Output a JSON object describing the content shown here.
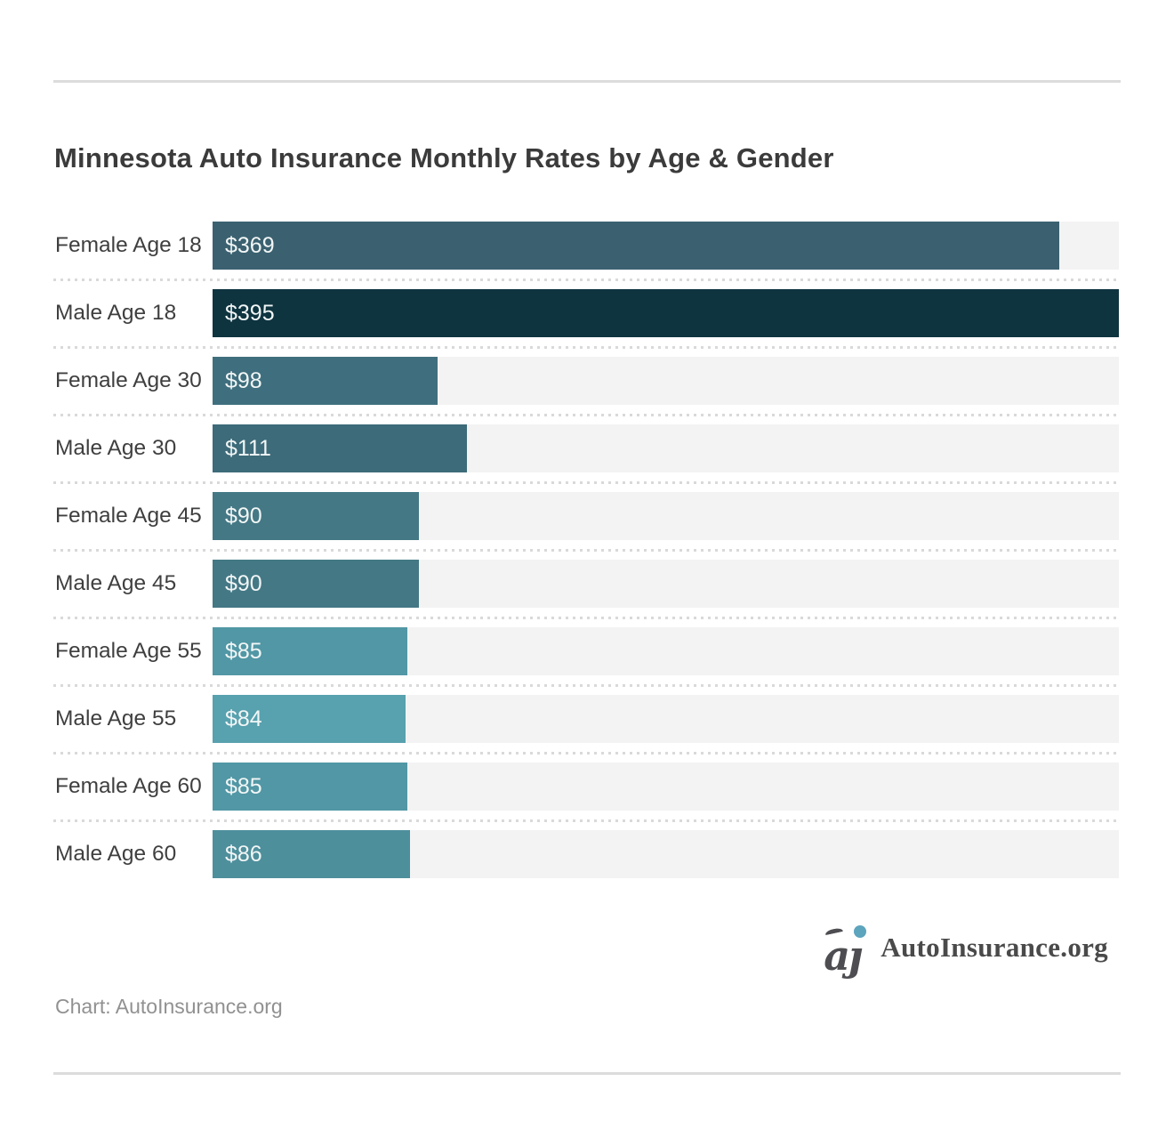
{
  "page": {
    "title": "Minnesota Auto Insurance Monthly Rates by Age & Gender",
    "source_caption": "Chart: AutoInsurance.org"
  },
  "brand": {
    "logo_text": "AutoInsurance.org",
    "logo_mark": "aj-monogram-icon",
    "logo_mark_letters": "aȷ",
    "logo_dot_color": "#5da4bd",
    "logo_text_color": "#4a4a4a"
  },
  "chart_data": {
    "type": "bar",
    "orientation": "horizontal",
    "title": "Minnesota Auto Insurance Monthly Rates by Age & Gender",
    "categories": [
      "Female Age 18",
      "Male Age 18",
      "Female Age 30",
      "Male Age 30",
      "Female Age 45",
      "Male Age 45",
      "Female Age 55",
      "Male Age 55",
      "Female Age 60",
      "Male Age 60"
    ],
    "values": [
      369,
      395,
      98,
      111,
      90,
      90,
      85,
      84,
      85,
      86
    ],
    "display_values": [
      "$369",
      "$395",
      "$98",
      "$111",
      "$90",
      "$90",
      "$85",
      "$84",
      "$85",
      "$86"
    ],
    "bar_colors": [
      "#3b6170",
      "#0e3440",
      "#3f6f7e",
      "#3d6b7a",
      "#447885",
      "#447885",
      "#5197a5",
      "#58a1ae",
      "#5197a5",
      "#4e8f9c"
    ],
    "track_color": "#f3f3f4",
    "value_label_position": "inside-left",
    "value_label_color": "#f2f6f6",
    "xlabel": "",
    "ylabel": "",
    "xlim": [
      0,
      395
    ],
    "grid": false,
    "legend": false,
    "row_separator_style": "dotted"
  }
}
